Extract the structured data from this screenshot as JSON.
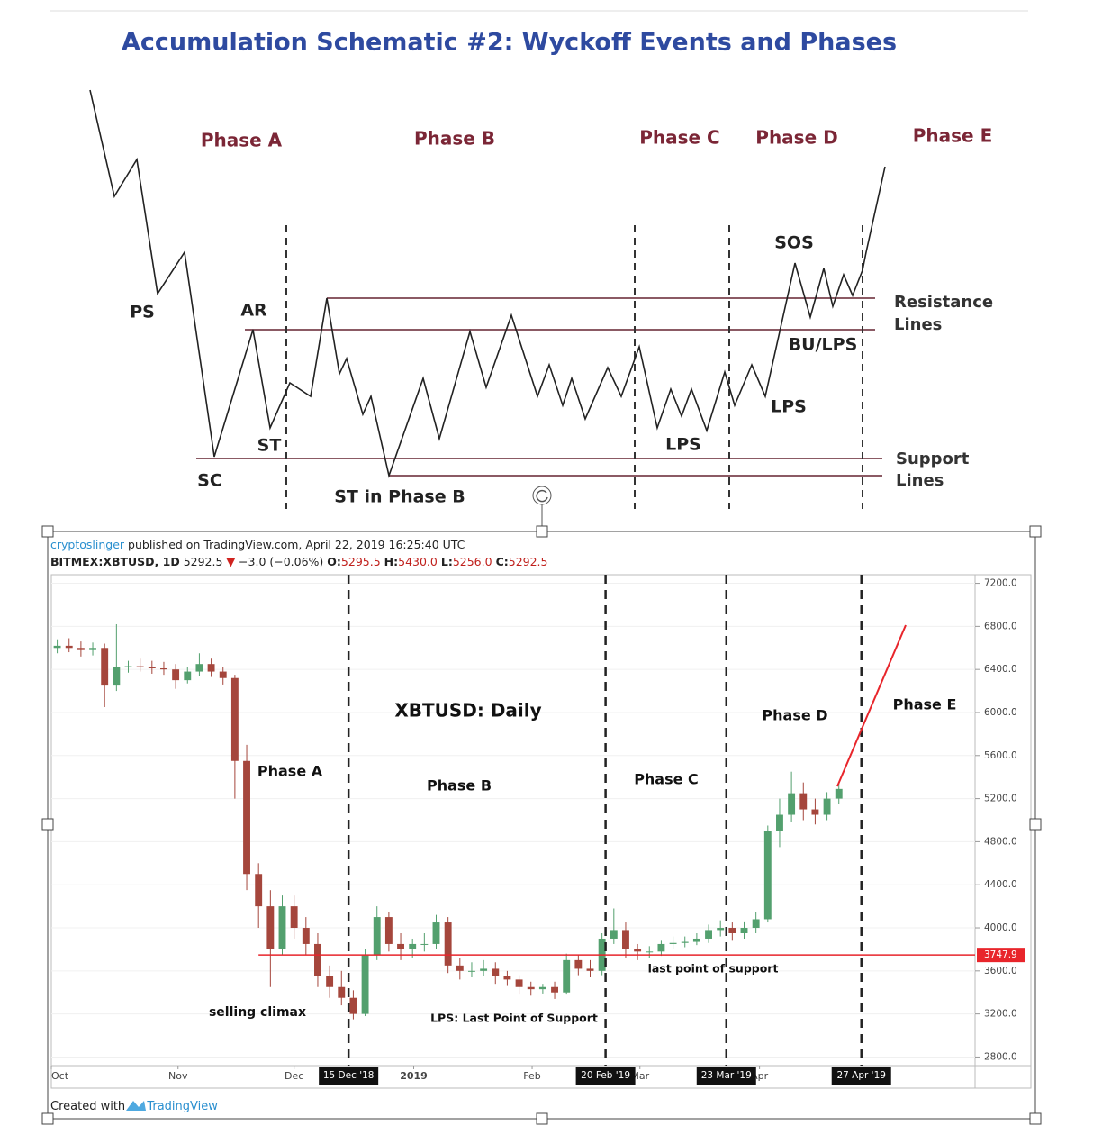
{
  "schematic": {
    "title": "Accumulation Schematic #2: Wyckoff Events and Phases",
    "phases": [
      "Phase A",
      "Phase B",
      "Phase C",
      "Phase D",
      "Phase E"
    ],
    "events": [
      "PS",
      "AR",
      "ST",
      "SC",
      "ST in Phase B",
      "LPS",
      "SOS",
      "BU/LPS",
      "LPS"
    ],
    "resistance_label": [
      "Resistance",
      "Lines"
    ],
    "support_label": [
      "Support",
      "Lines"
    ]
  },
  "header": {
    "publisher": "cryptoslinger",
    "published": "published on TradingView.com, April 22, 2019 16:25:40 UTC",
    "symbol": "BITMEX:XBTUSD, 1D",
    "last": "5292.5",
    "arrow": "▼",
    "change": "−3.0 (−0.06%)",
    "ohlc_labels": [
      "O:",
      "H:",
      "L:",
      "C:"
    ],
    "ohlc_values": [
      "5295.5",
      "5430.0",
      "5256.0",
      "5292.5"
    ]
  },
  "footer": {
    "prefix": "Created with",
    "brand": "TradingView"
  },
  "chart_data": {
    "type": "candlestick",
    "title": "XBTUSD: Daily",
    "up_color": "#53a06e",
    "down_color": "#a5463c",
    "open": [
      6600,
      6620,
      6600,
      6580,
      6600,
      6250,
      6420,
      6430,
      6420,
      6410,
      6400,
      6300,
      6380,
      6450,
      6380,
      6320,
      5550,
      4500,
      4200,
      3800,
      4200,
      4000,
      3850,
      3550,
      3450,
      3350,
      3200,
      3750,
      4100,
      3850,
      3800,
      3850,
      3850,
      4050,
      3650,
      3600,
      3600,
      3620,
      3550,
      3520,
      3450,
      3430,
      3450,
      3400,
      3700,
      3620,
      3600,
      3900,
      3980,
      3800,
      3780,
      3780,
      3850,
      3860,
      3870,
      3900,
      3980,
      4000,
      3950,
      4000,
      4080,
      4900,
      5050,
      5250,
      5100,
      5050,
      5200
    ],
    "high": [
      6680,
      6690,
      6660,
      6650,
      6640,
      6820,
      6480,
      6500,
      6480,
      6470,
      6450,
      6420,
      6550,
      6500,
      6420,
      6350,
      5700,
      4600,
      4350,
      4300,
      4300,
      4100,
      3950,
      3650,
      3600,
      3420,
      3800,
      4200,
      4150,
      3950,
      3900,
      3950,
      4120,
      4100,
      3720,
      3680,
      3700,
      3680,
      3600,
      3560,
      3500,
      3480,
      3500,
      3760,
      3750,
      3700,
      3950,
      4180,
      4050,
      3850,
      3830,
      3880,
      3920,
      3920,
      3950,
      4030,
      4070,
      4050,
      4060,
      4150,
      4950,
      5200,
      5450,
      5350,
      5200,
      5260,
      5340
    ],
    "low": [
      6550,
      6560,
      6520,
      6530,
      6050,
      6200,
      6370,
      6380,
      6360,
      6350,
      6220,
      6270,
      6340,
      6330,
      6260,
      5200,
      4350,
      4000,
      3450,
      3750,
      3900,
      3750,
      3450,
      3350,
      3280,
      3150,
      3180,
      3700,
      3780,
      3700,
      3720,
      3780,
      3800,
      3580,
      3520,
      3540,
      3550,
      3480,
      3460,
      3380,
      3370,
      3390,
      3340,
      3380,
      3560,
      3540,
      3560,
      3850,
      3720,
      3700,
      3720,
      3740,
      3800,
      3820,
      3840,
      3860,
      3920,
      3880,
      3900,
      3950,
      4050,
      4750,
      4980,
      5000,
      4960,
      5000,
      5150
    ],
    "close": [
      6620,
      6600,
      6580,
      6600,
      6250,
      6420,
      6430,
      6420,
      6410,
      6400,
      6300,
      6380,
      6450,
      6380,
      6320,
      5550,
      4500,
      4200,
      3800,
      4200,
      4000,
      3850,
      3550,
      3450,
      3350,
      3200,
      3750,
      4100,
      3850,
      3800,
      3850,
      3850,
      4050,
      3650,
      3600,
      3600,
      3620,
      3550,
      3520,
      3450,
      3430,
      3450,
      3400,
      3700,
      3620,
      3600,
      3900,
      3980,
      3800,
      3780,
      3780,
      3850,
      3860,
      3870,
      3900,
      3980,
      4000,
      3950,
      4000,
      4080,
      4900,
      5050,
      5250,
      5100,
      5050,
      5200,
      5290
    ],
    "xlim": [
      0,
      78
    ],
    "xticks": [
      {
        "value": 0,
        "label": "Oct"
      },
      {
        "value": 10.7,
        "label": "Nov"
      },
      {
        "value": 20.5,
        "label": "Dec"
      },
      {
        "value": 30.6,
        "label": "2019"
      },
      {
        "value": 40.6,
        "label": "Feb"
      },
      {
        "value": 49.7,
        "label": "Mar"
      },
      {
        "value": 59.8,
        "label": "Apr"
      }
    ],
    "markers": [
      {
        "value": 25.1,
        "label": "15 Dec '18"
      },
      {
        "value": 46.8,
        "label": "20 Feb '19"
      },
      {
        "value": 57.0,
        "label": "23 Mar '19"
      },
      {
        "value": 68.4,
        "label": "27 Apr '19"
      }
    ],
    "ylim": [
      2720,
      7280
    ],
    "yticks": [
      {
        "value": 2800,
        "label": "2800.0"
      },
      {
        "value": 3200,
        "label": "3200.0"
      },
      {
        "value": 3600,
        "label": "3600.0"
      },
      {
        "value": 4000,
        "label": "4000.0"
      },
      {
        "value": 4400,
        "label": "4400.0"
      },
      {
        "value": 4800,
        "label": "4800.0"
      },
      {
        "value": 5200,
        "label": "5200.0"
      },
      {
        "value": 5600,
        "label": "5600.0"
      },
      {
        "value": 6000,
        "label": "6000.0"
      },
      {
        "value": 6400,
        "label": "6400.0"
      },
      {
        "value": 6800,
        "label": "6800.0"
      },
      {
        "value": 7200,
        "label": "7200.0"
      }
    ],
    "hline": {
      "value": 3747.9,
      "color": "#e8252b"
    },
    "annotations": [
      "Phase A",
      "Phase B",
      "Phase C",
      "Phase D",
      "Phase E",
      "selling climax",
      "LPS: Last Point of Support",
      "last point of support"
    ]
  }
}
